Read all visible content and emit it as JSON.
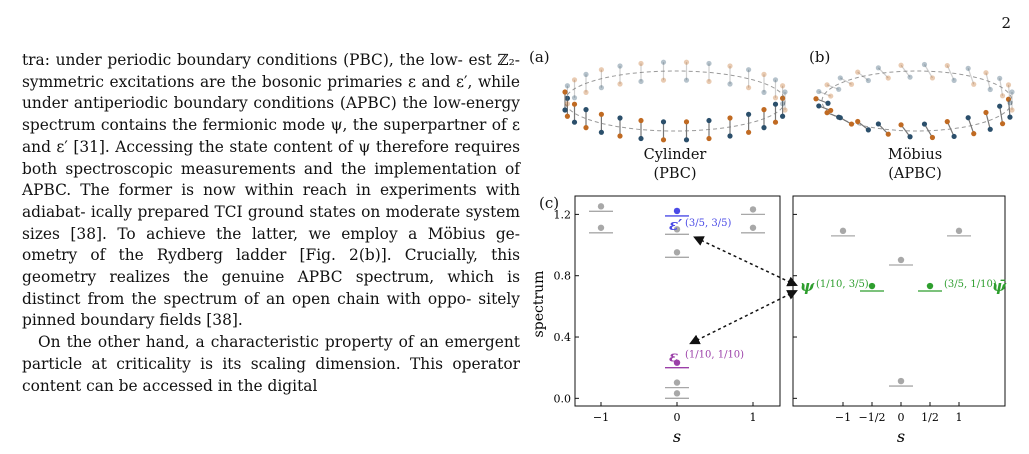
{
  "page_number": "2",
  "text_column": {
    "paragraph1": [
      "tra: under periodic boundary conditions (PBC), the low-",
      "est ℤ₂-symmetric excitations are the bosonic primaries",
      "ε and ε′, while under antiperiodic boundary conditions",
      "(APBC) the low-energy spectrum contains the fermionic",
      "mode ψ, the superpartner of ε and ε′ [31]. Accessing the",
      "state content of ψ therefore requires both spectroscopic",
      "measurements and the implementation of APBC. The",
      "former is now within reach in experiments with adiabat-",
      "ically prepared TCI ground states on moderate system",
      "sizes [38]. To achieve the latter, we employ a Möbius ge-",
      "ometry of the Rydberg ladder [Fig. 2(b)]. Crucially, this",
      "geometry realizes the genuine APBC spectrum, which is",
      "distinct from the spectrum of an open chain with oppo-",
      "sitely pinned boundary fields [38]."
    ],
    "paragraph2": [
      "On the other hand, a characteristic property of an",
      "emergent particle at criticality is its scaling dimension.",
      "This operator content can be accessed in the digital"
    ]
  },
  "figure": {
    "panel_a": {
      "letter": "(a)",
      "caption_line1": "Cylinder",
      "caption_line2": "(PBC)"
    },
    "panel_b": {
      "letter": "(b)",
      "caption_line1": "Möbius",
      "caption_line2": "(APBC)"
    },
    "panel_c": {
      "letter": "(c)"
    },
    "colors": {
      "gray": "#a8a8a8",
      "blue": "#4a4ae6",
      "purple": "#9b3fa8",
      "green": "#2e9e2e",
      "chain_dark": "#2b4f6b",
      "chain_orange": "#c06a22"
    },
    "chart_data": {
      "type": "scatter",
      "ylabel": "spectrum",
      "ylim": [
        -0.05,
        1.32
      ],
      "yticks": [
        "0.0",
        "0.4",
        "0.8",
        "1.2"
      ],
      "left_panel": {
        "xlabel": "s",
        "xticks": [
          "−1",
          "0",
          "1"
        ],
        "points": [
          {
            "s": -1,
            "E": 1.22,
            "color": "gray"
          },
          {
            "s": -1,
            "E": 1.08,
            "color": "gray"
          },
          {
            "s": 0,
            "E": 1.19,
            "color": "blue"
          },
          {
            "s": 0,
            "E": 1.07,
            "color": "gray"
          },
          {
            "s": 0,
            "E": 0.92,
            "color": "gray"
          },
          {
            "s": 0,
            "E": 0.2,
            "color": "purple"
          },
          {
            "s": 0,
            "E": 0.07,
            "color": "gray"
          },
          {
            "s": 0,
            "E": 0.0,
            "color": "gray"
          },
          {
            "s": 1,
            "E": 1.2,
            "color": "gray"
          },
          {
            "s": 1,
            "E": 1.08,
            "color": "gray"
          }
        ]
      },
      "right_panel": {
        "xlabel": "s",
        "xticks": [
          "−1",
          "−1/2",
          "0",
          "1/2",
          "1"
        ],
        "points": [
          {
            "s": -1,
            "E": 1.06,
            "color": "gray"
          },
          {
            "s": -0.5,
            "E": 0.7,
            "color": "green"
          },
          {
            "s": 0,
            "E": 0.87,
            "color": "gray"
          },
          {
            "s": 0,
            "E": 0.08,
            "color": "gray"
          },
          {
            "s": 0.5,
            "E": 0.7,
            "color": "green"
          },
          {
            "s": 1,
            "E": 1.06,
            "color": "gray"
          }
        ]
      },
      "annotations": {
        "eps_prime": {
          "symbol": "ε′",
          "weights": "(3/5, 3/5)"
        },
        "eps": {
          "symbol": "ε",
          "weights": "(1/10, 1/10)"
        },
        "psi": {
          "symbol": "ψ",
          "weights": "(1/10, 3/5)"
        },
        "psibar": {
          "symbol": "ψ̄",
          "weights": "(3/5, 1/10)"
        }
      }
    }
  }
}
